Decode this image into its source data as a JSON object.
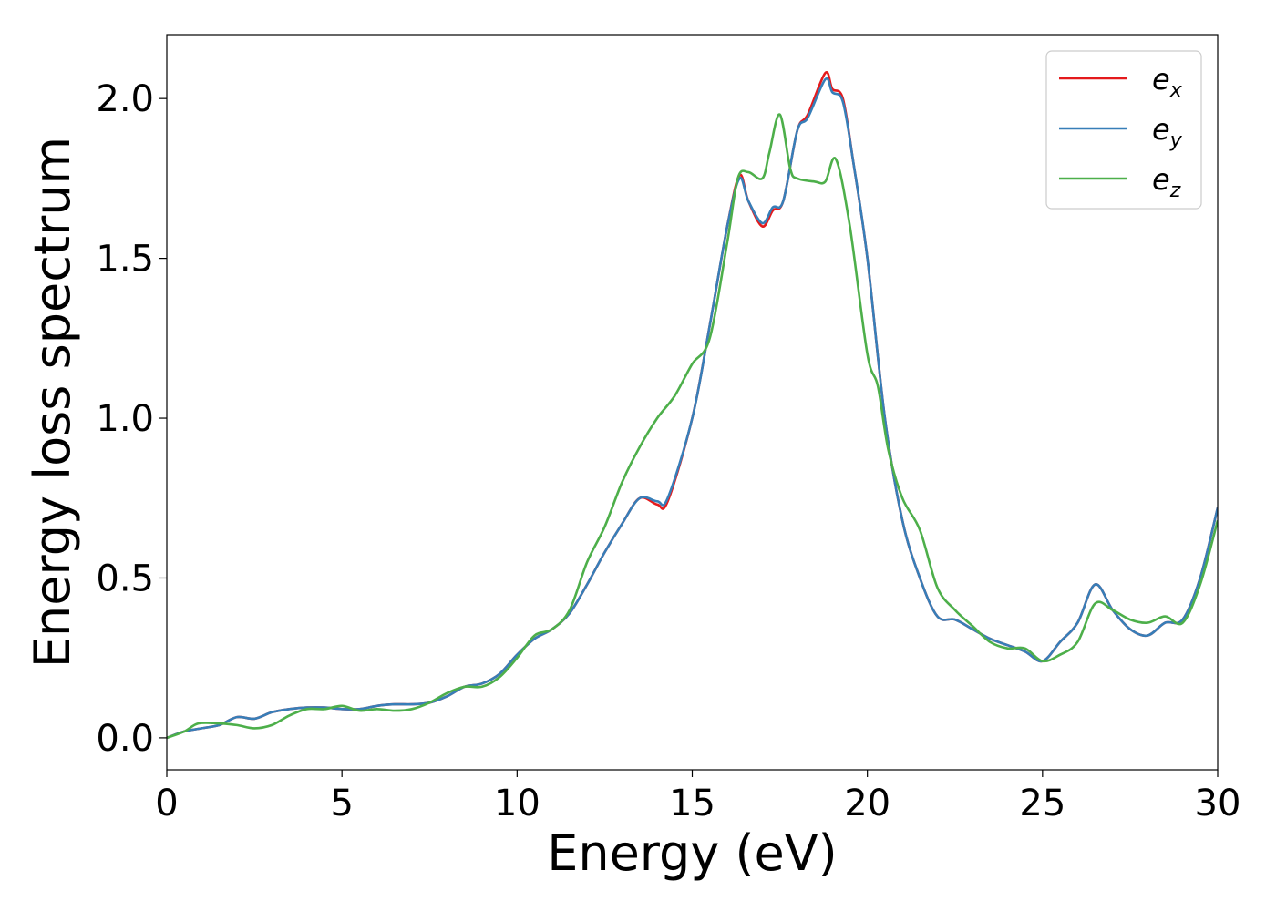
{
  "chart_data": {
    "type": "line",
    "title": "",
    "xlabel": "Energy (eV)",
    "ylabel": "Energy loss spectrum",
    "xlim": [
      0,
      30
    ],
    "ylim": [
      -0.1,
      2.2
    ],
    "xticks": [
      "0",
      "5",
      "10",
      "15",
      "20",
      "25",
      "30"
    ],
    "yticks": [
      "0.0",
      "0.5",
      "1.0",
      "1.5",
      "2.0"
    ],
    "grid": false,
    "legend_position": "top-right",
    "series": [
      {
        "name": "e_x",
        "label_base": "e",
        "label_sub": "x",
        "color": "#e41a1c",
        "x": [
          0,
          0.5,
          1,
          1.5,
          2,
          2.5,
          3,
          3.5,
          4,
          4.5,
          5,
          5.5,
          6,
          6.5,
          7,
          7.5,
          8,
          8.5,
          9,
          9.5,
          10,
          10.5,
          11,
          11.5,
          12,
          12.5,
          13,
          13.5,
          14,
          14.3,
          15,
          15.5,
          16,
          16.35,
          16.6,
          17,
          17.3,
          17.6,
          18,
          18.3,
          18.8,
          19,
          19.3,
          19.6,
          20,
          20.5,
          21,
          21.5,
          22,
          22.5,
          23,
          23.5,
          24,
          24.5,
          25,
          25.5,
          26,
          26.5,
          27,
          27.5,
          28,
          28.5,
          29,
          29.5,
          30
        ],
        "y": [
          0,
          0.02,
          0.03,
          0.04,
          0.065,
          0.06,
          0.08,
          0.09,
          0.095,
          0.095,
          0.09,
          0.09,
          0.1,
          0.105,
          0.105,
          0.11,
          0.13,
          0.16,
          0.17,
          0.2,
          0.26,
          0.31,
          0.34,
          0.39,
          0.48,
          0.58,
          0.67,
          0.75,
          0.73,
          0.74,
          1.0,
          1.29,
          1.6,
          1.76,
          1.68,
          1.6,
          1.65,
          1.68,
          1.9,
          1.95,
          2.08,
          2.03,
          2.0,
          1.8,
          1.5,
          1.0,
          0.68,
          0.5,
          0.38,
          0.37,
          0.34,
          0.31,
          0.29,
          0.27,
          0.24,
          0.3,
          0.36,
          0.48,
          0.4,
          0.34,
          0.32,
          0.36,
          0.37,
          0.5,
          0.72
        ]
      },
      {
        "name": "e_y",
        "label_base": "e",
        "label_sub": "y",
        "color": "#377eb8",
        "x": [
          0,
          0.5,
          1,
          1.5,
          2,
          2.5,
          3,
          3.5,
          4,
          4.5,
          5,
          5.5,
          6,
          6.5,
          7,
          7.5,
          8,
          8.5,
          9,
          9.5,
          10,
          10.5,
          11,
          11.5,
          12,
          12.5,
          13,
          13.5,
          14,
          14.3,
          15,
          15.5,
          16,
          16.35,
          16.6,
          17,
          17.3,
          17.6,
          18,
          18.3,
          18.8,
          19,
          19.3,
          19.6,
          20,
          20.5,
          21,
          21.5,
          22,
          22.5,
          23,
          23.5,
          24,
          24.5,
          25,
          25.5,
          26,
          26.5,
          27,
          27.5,
          28,
          28.5,
          29,
          29.5,
          30
        ],
        "y": [
          0,
          0.02,
          0.03,
          0.04,
          0.065,
          0.06,
          0.08,
          0.09,
          0.095,
          0.095,
          0.09,
          0.09,
          0.1,
          0.105,
          0.105,
          0.11,
          0.13,
          0.16,
          0.17,
          0.2,
          0.26,
          0.31,
          0.34,
          0.39,
          0.48,
          0.58,
          0.67,
          0.75,
          0.74,
          0.75,
          1.0,
          1.29,
          1.6,
          1.75,
          1.68,
          1.61,
          1.66,
          1.68,
          1.9,
          1.94,
          2.06,
          2.02,
          1.99,
          1.8,
          1.5,
          1.0,
          0.68,
          0.5,
          0.38,
          0.37,
          0.34,
          0.31,
          0.29,
          0.27,
          0.24,
          0.3,
          0.36,
          0.48,
          0.4,
          0.34,
          0.32,
          0.36,
          0.37,
          0.5,
          0.72
        ]
      },
      {
        "name": "e_z",
        "label_base": "e",
        "label_sub": "z",
        "color": "#4daf4a",
        "x": [
          0,
          0.5,
          0.9,
          1.5,
          2,
          2.5,
          3,
          3.5,
          4,
          4.5,
          5,
          5.5,
          6,
          6.5,
          7,
          7.5,
          8,
          8.5,
          9,
          9.5,
          10,
          10.5,
          11,
          11.5,
          12,
          12.5,
          13,
          13.5,
          14,
          14.5,
          15,
          15.5,
          16,
          16.3,
          16.6,
          17,
          17.2,
          17.5,
          17.8,
          18,
          18.5,
          18.8,
          19.1,
          19.5,
          20,
          20.3,
          20.6,
          21,
          21.5,
          22,
          22.5,
          23,
          23.5,
          24,
          24.5,
          25,
          25.5,
          26,
          26.5,
          27,
          27.5,
          28,
          28.5,
          29,
          29.5,
          30
        ],
        "y": [
          0,
          0.02,
          0.045,
          0.045,
          0.04,
          0.03,
          0.04,
          0.07,
          0.09,
          0.09,
          0.1,
          0.085,
          0.09,
          0.085,
          0.09,
          0.11,
          0.14,
          0.16,
          0.16,
          0.19,
          0.25,
          0.32,
          0.34,
          0.4,
          0.55,
          0.66,
          0.8,
          0.91,
          1.0,
          1.07,
          1.17,
          1.25,
          1.55,
          1.75,
          1.77,
          1.75,
          1.83,
          1.95,
          1.78,
          1.75,
          1.74,
          1.74,
          1.81,
          1.6,
          1.2,
          1.1,
          0.9,
          0.75,
          0.65,
          0.47,
          0.4,
          0.35,
          0.3,
          0.28,
          0.28,
          0.24,
          0.26,
          0.3,
          0.42,
          0.4,
          0.37,
          0.36,
          0.38,
          0.36,
          0.48,
          0.68
        ]
      }
    ]
  }
}
